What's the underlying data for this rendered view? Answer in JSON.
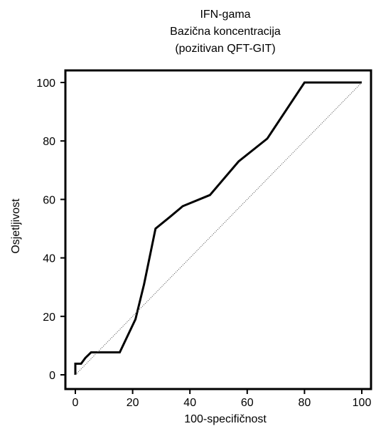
{
  "chart_data": {
    "type": "line",
    "title_lines": [
      "IFN-gama",
      "Bazična koncentracija",
      "(pozitivan QFT-GIT)"
    ],
    "xlabel": "100-specifičnost",
    "ylabel": "Osjetljivost",
    "xlim": [
      -5,
      102
    ],
    "ylim": [
      -5,
      103
    ],
    "xticks": [
      0,
      20,
      40,
      60,
      80,
      100
    ],
    "yticks": [
      0,
      20,
      40,
      60,
      80,
      100
    ],
    "grid": false,
    "series": [
      {
        "style": "roc-curve",
        "color": "#000000",
        "x": [
          0,
          0,
          1,
          2,
          3.5,
          5.5,
          6,
          15.5,
          21,
          24,
          28,
          33,
          37.5,
          47,
          57,
          67,
          80,
          100
        ],
        "y": [
          0,
          3.8,
          3.8,
          3.8,
          5.8,
          7.7,
          7.7,
          7.7,
          19,
          31,
          50,
          54,
          57.7,
          61.5,
          73,
          80.8,
          100,
          100
        ]
      },
      {
        "style": "reference-diagonal",
        "color": "#555555",
        "x": [
          0,
          100
        ],
        "y": [
          0,
          100
        ]
      }
    ]
  }
}
